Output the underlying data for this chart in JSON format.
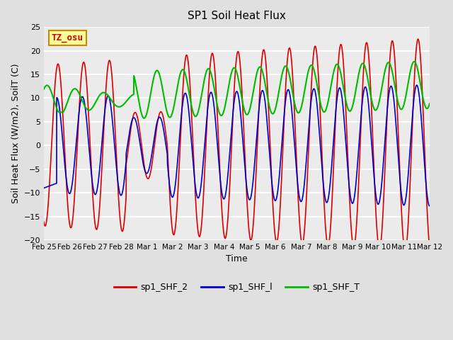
{
  "title": "SP1 Soil Heat Flux",
  "xlabel": "Time",
  "ylabel": "Soil Heat Flux (W/m2), SoilT (C)",
  "ylim": [
    -20,
    25
  ],
  "yticks": [
    -20,
    -15,
    -10,
    -5,
    0,
    5,
    10,
    15,
    20,
    25
  ],
  "xtick_labels": [
    "Feb 25",
    "Feb 26",
    "Feb 27",
    "Feb 28",
    "Mar 1",
    "Mar 2",
    "Mar 3",
    "Mar 4",
    "Mar 5",
    "Mar 6",
    "Mar 7",
    "Mar 8",
    "Mar 9",
    "Mar 10",
    "Mar 11",
    "Mar 12"
  ],
  "background_color": "#e0e0e0",
  "plot_bg_color": "#ebebeb",
  "grid_color": "#ffffff",
  "line_colors": {
    "sp1_SHF_2": "#dd0000",
    "sp1_SHF_1": "#0000cc",
    "sp1_SHF_T": "#00bb00"
  },
  "legend_labels": [
    "sp1_SHF_2",
    "sp1_SHF_l",
    "sp1_SHF_T"
  ],
  "tz_label": "TZ_osu",
  "tz_box_color": "#ffff99",
  "tz_border_color": "#cc8800",
  "n_days": 16,
  "points_per_day": 288
}
